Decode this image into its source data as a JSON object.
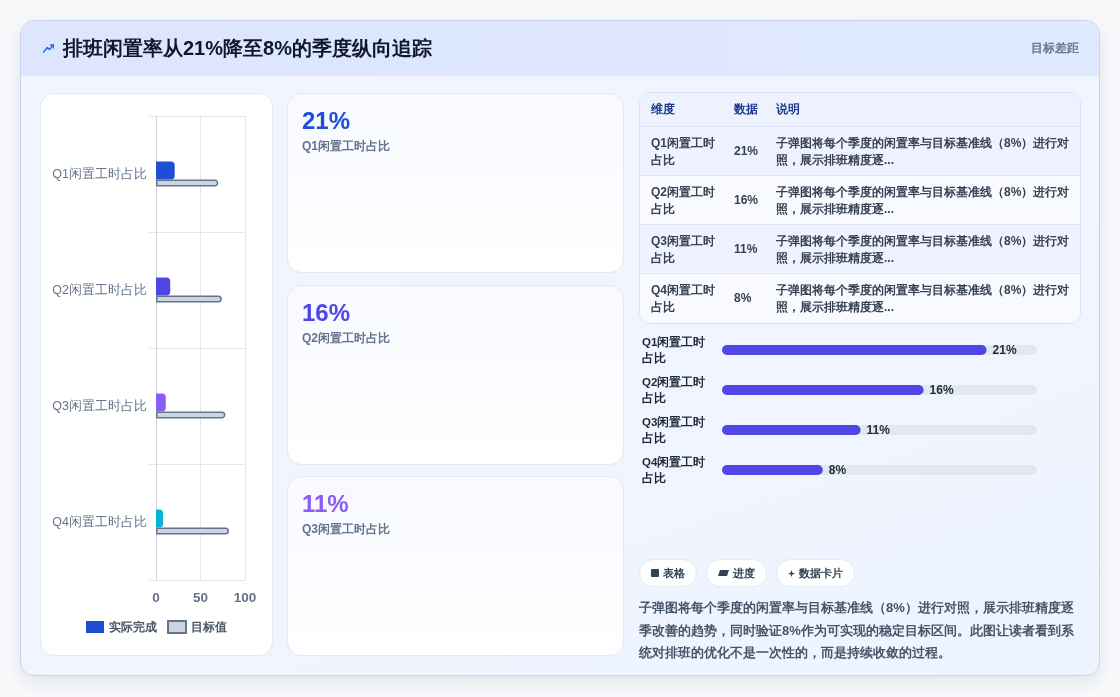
{
  "chart_data": [
    {
      "type": "other",
      "title": "排班闲置率从21%降至8%的季度纵向追踪",
      "annotations": [
        "目标差距"
      ]
    },
    {
      "type": "bar",
      "orientation": "horizontal",
      "categories": [
        "Q1闲置工时占比",
        "Q2闲置工时占比",
        "Q3闲置工时占比",
        "Q4闲置工时占比"
      ],
      "series": [
        {
          "name": "实际完成",
          "color": "#1d4ed8",
          "colors": [
            "#1d4ed8",
            "#4f46e5",
            "#8b5cf6",
            "#06b6d4"
          ],
          "values": [
            21,
            16,
            11,
            8
          ]
        },
        {
          "name": "目标值",
          "color": "#cbd5e1",
          "values": [
            70,
            74,
            78,
            82
          ]
        }
      ],
      "xlim": [
        0,
        100
      ],
      "xticks": [
        0,
        50,
        100
      ],
      "grid": true,
      "legend": "bottom"
    },
    {
      "type": "other",
      "categories": [
        "Q1闲置工时占比",
        "Q2闲置工时占比",
        "Q3闲置工时占比"
      ],
      "values": [
        21,
        16,
        11
      ],
      "value_labels": [
        "21%",
        "16%",
        "11%"
      ]
    },
    {
      "type": "other",
      "categories": [
        "Q1闲置工时占比",
        "Q2闲置工时占比",
        "Q3闲置工时占比",
        "Q4闲置工时占比"
      ],
      "value_labels": [
        "21%",
        "16%",
        "11%",
        "8%"
      ],
      "annotations": [
        "维度",
        "数据",
        "说明",
        "子弹图将每个季度的闲置率与目标基准线（8%）进行对照，展示排班精度逐...",
        "子弹图将每个季度的闲置率与目标基准线（8%）进行对照，展示排班精度逐...",
        "子弹图将每个季度的闲置率与目标基准线（8%）进行对照，展示排班精度逐...",
        "子弹图将每个季度的闲置率与目标基准线（8%）进行对照，展示排班精度逐..."
      ]
    },
    {
      "type": "bar",
      "orientation": "horizontal",
      "categories": [
        "Q1闲置工时占比",
        "Q2闲置工时占比",
        "Q3闲置工时占比",
        "Q4闲置工时占比"
      ],
      "values": [
        21,
        16,
        11,
        8
      ],
      "value_labels": [
        "21%",
        "16%",
        "11%",
        "8%"
      ],
      "color": "#4f46e5",
      "tick_labels": "y"
    },
    {
      "type": "other",
      "categories": [
        "表格",
        "进度",
        "数据卡片"
      ],
      "annotations": [
        "子弹图将每个季度的闲置率与目标基准线（8%）进行对照，展示排班精度逐季改善的趋势，同时验证8%作为可实现的稳定目标区间。此图让读者看到系统对排班的优化不是一次性的，而是持续收敛的过程。"
      ]
    }
  ]
}
